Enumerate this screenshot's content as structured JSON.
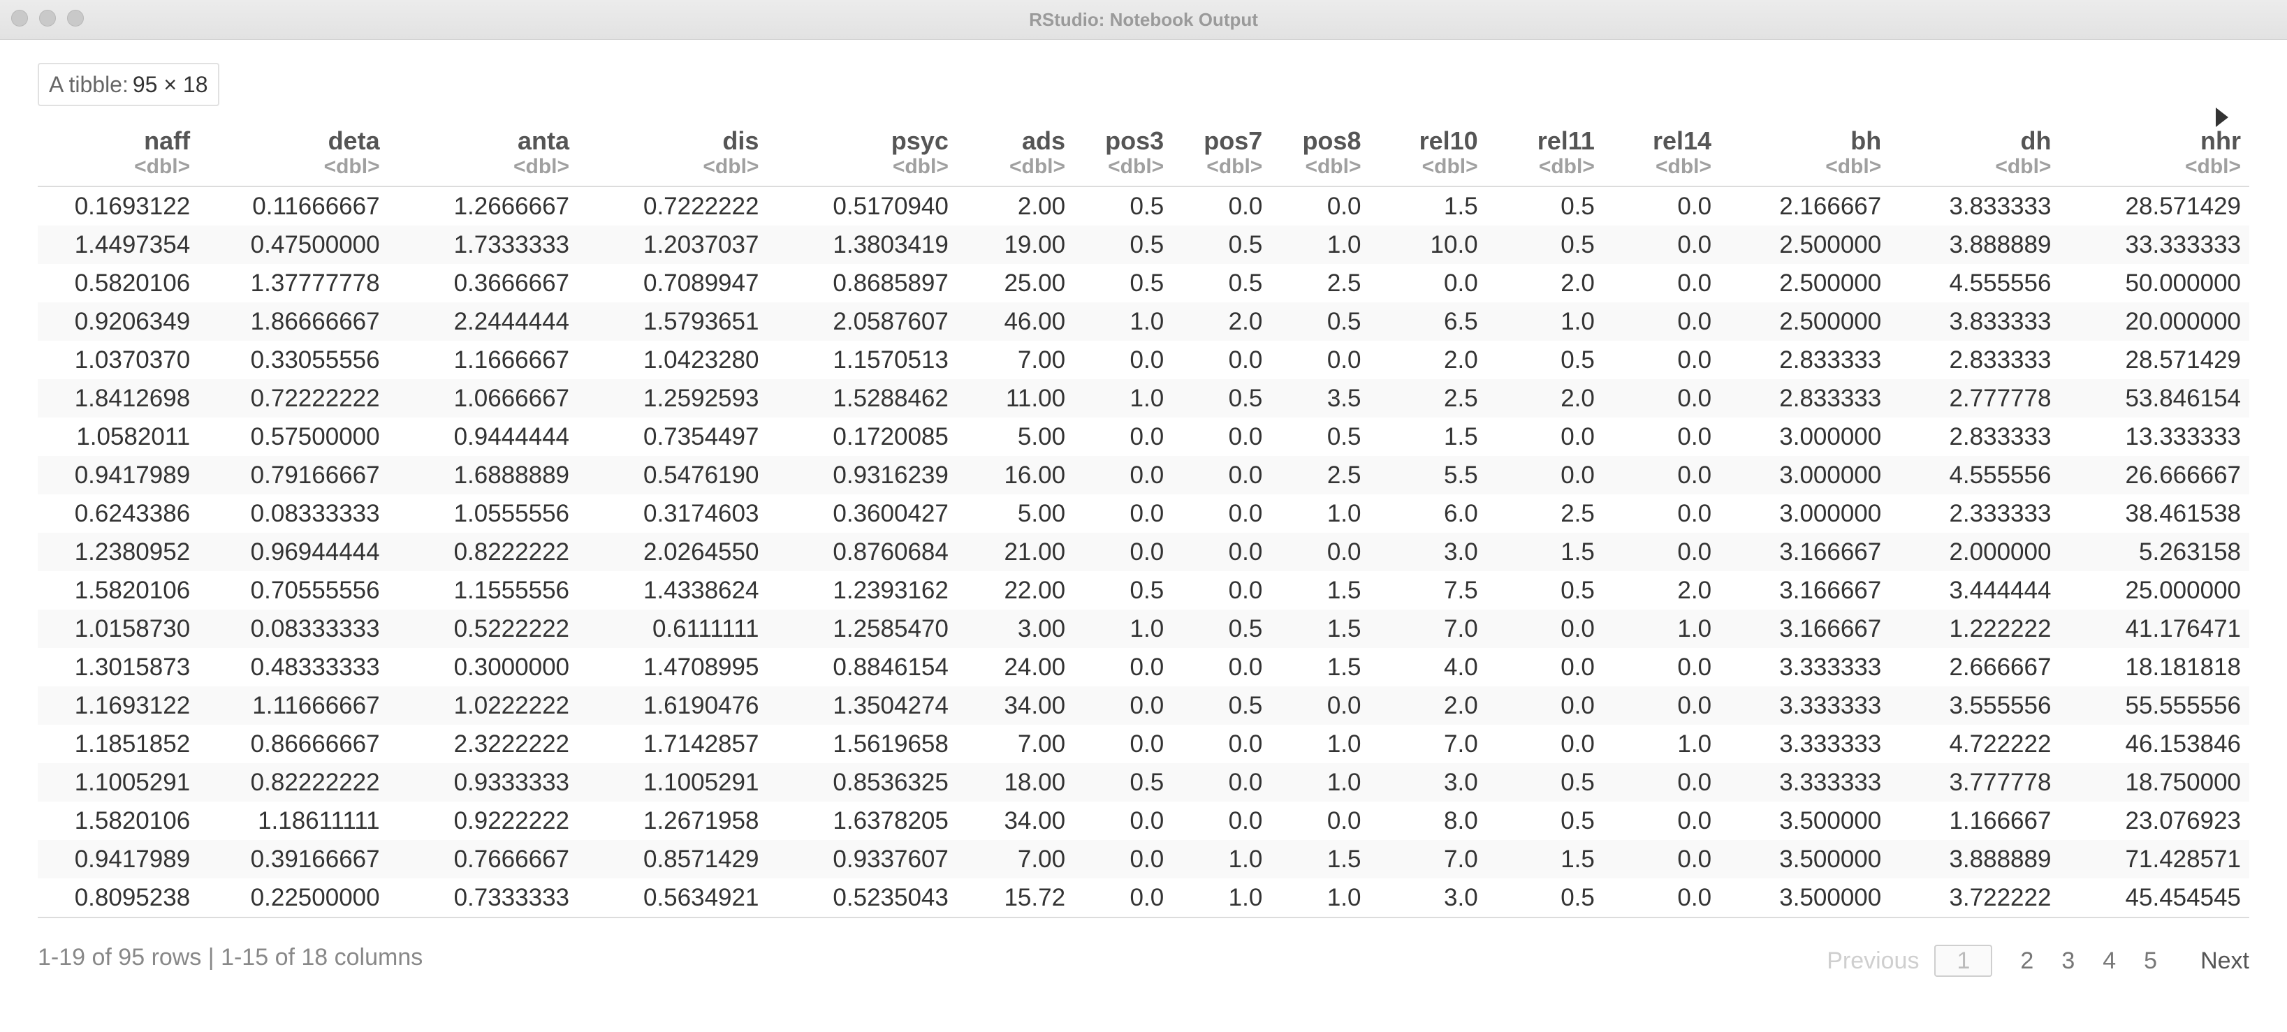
{
  "window": {
    "title": "RStudio: Notebook Output"
  },
  "tibble": {
    "label": "A tibble:",
    "dims": "95 × 18"
  },
  "columns": [
    {
      "name": "naff",
      "type": "<dbl>"
    },
    {
      "name": "deta",
      "type": "<dbl>"
    },
    {
      "name": "anta",
      "type": "<dbl>"
    },
    {
      "name": "dis",
      "type": "<dbl>"
    },
    {
      "name": "psyc",
      "type": "<dbl>"
    },
    {
      "name": "ads",
      "type": "<dbl>"
    },
    {
      "name": "pos3",
      "type": "<dbl>"
    },
    {
      "name": "pos7",
      "type": "<dbl>"
    },
    {
      "name": "pos8",
      "type": "<dbl>"
    },
    {
      "name": "rel10",
      "type": "<dbl>"
    },
    {
      "name": "rel11",
      "type": "<dbl>"
    },
    {
      "name": "rel14",
      "type": "<dbl>"
    },
    {
      "name": "bh",
      "type": "<dbl>"
    },
    {
      "name": "dh",
      "type": "<dbl>"
    },
    {
      "name": "nhr",
      "type": "<dbl>"
    }
  ],
  "rows": [
    [
      "0.1693122",
      "0.11666667",
      "1.2666667",
      "0.7222222",
      "0.5170940",
      "2.00",
      "0.5",
      "0.0",
      "0.0",
      "1.5",
      "0.5",
      "0.0",
      "2.166667",
      "3.833333",
      "28.571429"
    ],
    [
      "1.4497354",
      "0.47500000",
      "1.7333333",
      "1.2037037",
      "1.3803419",
      "19.00",
      "0.5",
      "0.5",
      "1.0",
      "10.0",
      "0.5",
      "0.0",
      "2.500000",
      "3.888889",
      "33.333333"
    ],
    [
      "0.5820106",
      "1.37777778",
      "0.3666667",
      "0.7089947",
      "0.8685897",
      "25.00",
      "0.5",
      "0.5",
      "2.5",
      "0.0",
      "2.0",
      "0.0",
      "2.500000",
      "4.555556",
      "50.000000"
    ],
    [
      "0.9206349",
      "1.86666667",
      "2.2444444",
      "1.5793651",
      "2.0587607",
      "46.00",
      "1.0",
      "2.0",
      "0.5",
      "6.5",
      "1.0",
      "0.0",
      "2.500000",
      "3.833333",
      "20.000000"
    ],
    [
      "1.0370370",
      "0.33055556",
      "1.1666667",
      "1.0423280",
      "1.1570513",
      "7.00",
      "0.0",
      "0.0",
      "0.0",
      "2.0",
      "0.5",
      "0.0",
      "2.833333",
      "2.833333",
      "28.571429"
    ],
    [
      "1.8412698",
      "0.72222222",
      "1.0666667",
      "1.2592593",
      "1.5288462",
      "11.00",
      "1.0",
      "0.5",
      "3.5",
      "2.5",
      "2.0",
      "0.0",
      "2.833333",
      "2.777778",
      "53.846154"
    ],
    [
      "1.0582011",
      "0.57500000",
      "0.9444444",
      "0.7354497",
      "0.1720085",
      "5.00",
      "0.0",
      "0.0",
      "0.5",
      "1.5",
      "0.0",
      "0.0",
      "3.000000",
      "2.833333",
      "13.333333"
    ],
    [
      "0.9417989",
      "0.79166667",
      "1.6888889",
      "0.5476190",
      "0.9316239",
      "16.00",
      "0.0",
      "0.0",
      "2.5",
      "5.5",
      "0.0",
      "0.0",
      "3.000000",
      "4.555556",
      "26.666667"
    ],
    [
      "0.6243386",
      "0.08333333",
      "1.0555556",
      "0.3174603",
      "0.3600427",
      "5.00",
      "0.0",
      "0.0",
      "1.0",
      "6.0",
      "2.5",
      "0.0",
      "3.000000",
      "2.333333",
      "38.461538"
    ],
    [
      "1.2380952",
      "0.96944444",
      "0.8222222",
      "2.0264550",
      "0.8760684",
      "21.00",
      "0.0",
      "0.0",
      "0.0",
      "3.0",
      "1.5",
      "0.0",
      "3.166667",
      "2.000000",
      "5.263158"
    ],
    [
      "1.5820106",
      "0.70555556",
      "1.1555556",
      "1.4338624",
      "1.2393162",
      "22.00",
      "0.5",
      "0.0",
      "1.5",
      "7.5",
      "0.5",
      "2.0",
      "3.166667",
      "3.444444",
      "25.000000"
    ],
    [
      "1.0158730",
      "0.08333333",
      "0.5222222",
      "0.6111111",
      "1.2585470",
      "3.00",
      "1.0",
      "0.5",
      "1.5",
      "7.0",
      "0.0",
      "1.0",
      "3.166667",
      "1.222222",
      "41.176471"
    ],
    [
      "1.3015873",
      "0.48333333",
      "0.3000000",
      "1.4708995",
      "0.8846154",
      "24.00",
      "0.0",
      "0.0",
      "1.5",
      "4.0",
      "0.0",
      "0.0",
      "3.333333",
      "2.666667",
      "18.181818"
    ],
    [
      "1.1693122",
      "1.11666667",
      "1.0222222",
      "1.6190476",
      "1.3504274",
      "34.00",
      "0.0",
      "0.5",
      "0.0",
      "2.0",
      "0.0",
      "0.0",
      "3.333333",
      "3.555556",
      "55.555556"
    ],
    [
      "1.1851852",
      "0.86666667",
      "2.3222222",
      "1.7142857",
      "1.5619658",
      "7.00",
      "0.0",
      "0.0",
      "1.0",
      "7.0",
      "0.0",
      "1.0",
      "3.333333",
      "4.722222",
      "46.153846"
    ],
    [
      "1.1005291",
      "0.82222222",
      "0.9333333",
      "1.1005291",
      "0.8536325",
      "18.00",
      "0.5",
      "0.0",
      "1.0",
      "3.0",
      "0.5",
      "0.0",
      "3.333333",
      "3.777778",
      "18.750000"
    ],
    [
      "1.5820106",
      "1.18611111",
      "0.9222222",
      "1.2671958",
      "1.6378205",
      "34.00",
      "0.0",
      "0.0",
      "0.0",
      "8.0",
      "0.5",
      "0.0",
      "3.500000",
      "1.166667",
      "23.076923"
    ],
    [
      "0.9417989",
      "0.39166667",
      "0.7666667",
      "0.8571429",
      "0.9337607",
      "7.00",
      "0.0",
      "1.0",
      "1.5",
      "7.0",
      "1.5",
      "0.0",
      "3.500000",
      "3.888889",
      "71.428571"
    ],
    [
      "0.8095238",
      "0.22500000",
      "0.7333333",
      "0.5634921",
      "0.5235043",
      "15.72",
      "0.0",
      "1.0",
      "1.0",
      "3.0",
      "0.5",
      "0.0",
      "3.500000",
      "3.722222",
      "45.454545"
    ]
  ],
  "footer": {
    "info": "1-19 of 95 rows | 1-15 of 18 columns"
  },
  "pagination": {
    "previous": "Previous",
    "pages": [
      "1",
      "2",
      "3",
      "4",
      "5"
    ],
    "current": "1",
    "next": "Next"
  }
}
